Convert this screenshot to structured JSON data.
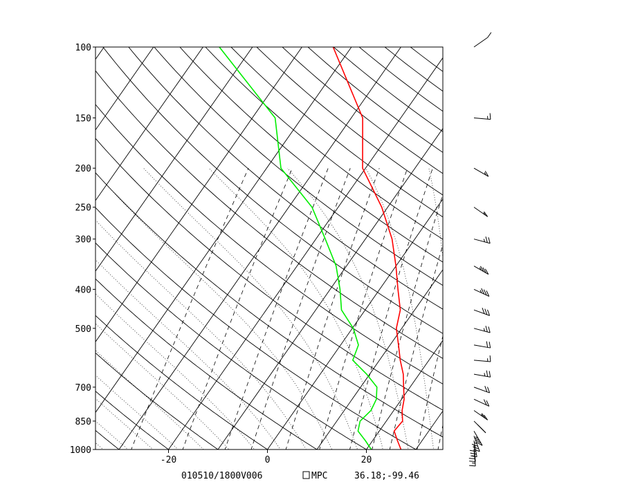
{
  "chart_data": {
    "type": "skew-t log-p sounding",
    "title": "",
    "xlabel": "",
    "ylabel": "",
    "y_scale": "log",
    "y_reversed": true,
    "ylim": [
      1000,
      100
    ],
    "xlim": [
      -35,
      35
    ],
    "y_ticks": [
      "100",
      "150",
      "200",
      "250",
      "300",
      "400",
      "500",
      "700",
      "850",
      "1000"
    ],
    "x_ticks": [
      "-20",
      "0",
      "20"
    ],
    "x_tick_values": [
      -20,
      0,
      20
    ],
    "y_tick_values": [
      100,
      150,
      200,
      250,
      300,
      400,
      500,
      700,
      850,
      1000
    ],
    "grid": true,
    "series": [
      {
        "color": "#ff0000",
        "points": [
          {
            "p": 1000,
            "t": 27.0
          },
          {
            "p": 950,
            "t": 25.0
          },
          {
            "p": 900,
            "t": 23.0
          },
          {
            "p": 850,
            "t": 23.3
          },
          {
            "p": 800,
            "t": 21.7
          },
          {
            "p": 750,
            "t": 20.5
          },
          {
            "p": 700,
            "t": 18.7
          },
          {
            "p": 650,
            "t": 16.8
          },
          {
            "p": 600,
            "t": 14.2
          },
          {
            "p": 550,
            "t": 11.7
          },
          {
            "p": 500,
            "t": 8.9
          },
          {
            "p": 450,
            "t": 7.1
          },
          {
            "p": 400,
            "t": 3.7
          },
          {
            "p": 350,
            "t": 0.0
          },
          {
            "p": 300,
            "t": -4.6
          },
          {
            "p": 250,
            "t": -11.2
          },
          {
            "p": 200,
            "t": -20.6
          },
          {
            "p": 150,
            "t": -27.7
          },
          {
            "p": 100,
            "t": -43.7
          }
        ]
      },
      {
        "color": "#00ee00",
        "points": [
          {
            "p": 1000,
            "t": 21.0
          },
          {
            "p": 950,
            "t": 18.5
          },
          {
            "p": 900,
            "t": 15.7
          },
          {
            "p": 850,
            "t": 14.7
          },
          {
            "p": 800,
            "t": 15.4
          },
          {
            "p": 750,
            "t": 14.9
          },
          {
            "p": 700,
            "t": 13.3
          },
          {
            "p": 650,
            "t": 9.4
          },
          {
            "p": 600,
            "t": 4.6
          },
          {
            "p": 550,
            "t": 3.6
          },
          {
            "p": 500,
            "t": 0.2
          },
          {
            "p": 450,
            "t": -4.8
          },
          {
            "p": 400,
            "t": -8.0
          },
          {
            "p": 350,
            "t": -12.1
          },
          {
            "p": 300,
            "t": -18.1
          },
          {
            "p": 250,
            "t": -25.3
          },
          {
            "p": 200,
            "t": -37.1
          },
          {
            "p": 150,
            "t": -45.4
          },
          {
            "p": 100,
            "t": -66.7
          }
        ]
      }
    ],
    "wind_barbs": [
      {
        "p": 1000,
        "dir": 185,
        "spd": 15
      },
      {
        "p": 975,
        "dir": 185,
        "spd": 25
      },
      {
        "p": 950,
        "dir": 190,
        "spd": 30
      },
      {
        "p": 925,
        "dir": 200,
        "spd": 35
      },
      {
        "p": 900,
        "dir": 210,
        "spd": 35
      },
      {
        "p": 850,
        "dir": 225,
        "spd": 30
      },
      {
        "p": 800,
        "dir": 235,
        "spd": 25
      },
      {
        "p": 750,
        "dir": 245,
        "spd": 20
      },
      {
        "p": 700,
        "dir": 250,
        "spd": 20
      },
      {
        "p": 650,
        "dir": 260,
        "spd": 25
      },
      {
        "p": 600,
        "dir": 265,
        "spd": 15
      },
      {
        "p": 550,
        "dir": 260,
        "spd": 20
      },
      {
        "p": 500,
        "dir": 255,
        "spd": 25
      },
      {
        "p": 450,
        "dir": 250,
        "spd": 30
      },
      {
        "p": 400,
        "dir": 245,
        "spd": 35
      },
      {
        "p": 350,
        "dir": 240,
        "spd": 35
      },
      {
        "p": 300,
        "dir": 255,
        "spd": 25
      },
      {
        "p": 250,
        "dir": 235,
        "spd": 15
      },
      {
        "p": 200,
        "dir": 240,
        "spd": 15
      },
      {
        "p": 150,
        "dir": 265,
        "spd": 15
      },
      {
        "p": 100,
        "dir": 305,
        "spd": 10
      }
    ]
  },
  "footer": {
    "valid_time": "010510/1800V006",
    "source": "MPC",
    "location": "36.18;-99.46"
  },
  "colors": {
    "temperature": "#ff0000",
    "dewpoint": "#00ee00",
    "grid": "#000000",
    "background": "#ffffff"
  }
}
